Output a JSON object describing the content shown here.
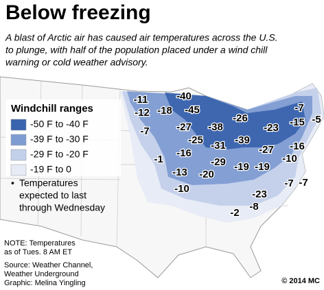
{
  "title": "Below freezing",
  "subtitle": [
    "A blast of Arctic air has caused air temperatures across the U.S.",
    "to plunge, with half of the population placed under a wind chill",
    "warning or cold weather advisory."
  ],
  "legend": {
    "title": "Windchill ranges",
    "items": [
      {
        "label": "-50 F to -40 F",
        "color": "#3a64ae"
      },
      {
        "label": "-39 F to -30 F",
        "color": "#7f9cd2"
      },
      {
        "label": "-29 F to -20 F",
        "color": "#c3d0ea"
      },
      {
        "label": "-19 F to 0",
        "color": "#e6ebf6"
      }
    ]
  },
  "bullet_note": [
    "Temperatures",
    "expected to last",
    "through Wednesday"
  ],
  "temperatures": [
    -11,
    -40,
    -12,
    -18,
    -45,
    -7,
    -7,
    -27,
    -38,
    -26,
    -15,
    -5,
    -23,
    -25,
    -31,
    -39,
    -16,
    -27,
    -1,
    -16,
    -10,
    -13,
    -20,
    -29,
    -19,
    -19,
    -7,
    -7,
    -10,
    -23,
    -2,
    -8
  ],
  "footnotes": [
    "NOTE: Temperatures",
    "as of Tues. 8 AM ET",
    "Source: Weather Channel,",
    "Weather Underground",
    "Graphic: Melina Yingling"
  ],
  "credit": "© 2014 MC"
}
